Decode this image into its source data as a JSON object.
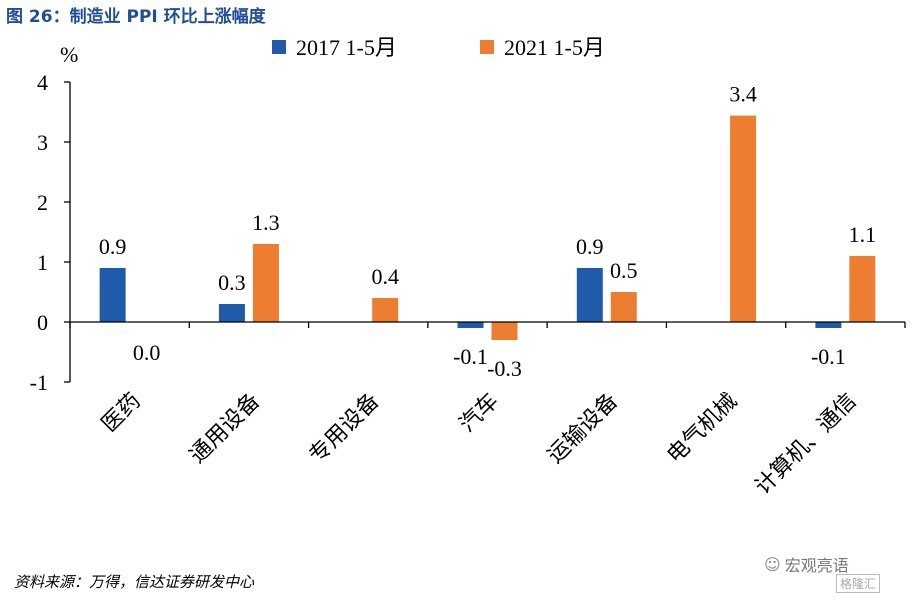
{
  "figure": {
    "title": "图  26：制造业 PPI 环比上涨幅度",
    "source": "资料来源：万得，信达证券研发中心",
    "watermark_text": "宏观亮语",
    "watermark_icon": "wechat-icon",
    "brand_text": "格隆汇"
  },
  "chart_data": {
    "type": "bar",
    "ylabel": "%",
    "ylim": [
      -1,
      4
    ],
    "yticks": [
      -1,
      0,
      1,
      2,
      3,
      4
    ],
    "grid": false,
    "legend_position": "top",
    "categories": [
      "医药",
      "通用设备",
      "专用设备",
      "汽车",
      "运输设备",
      "电气机械",
      "计算机、通信"
    ],
    "series": [
      {
        "name": "2017 1-5月",
        "color": "#1f5ba8",
        "values": [
          0.9,
          0.3,
          null,
          -0.1,
          0.9,
          null,
          -0.1
        ],
        "labels": [
          "0.9",
          "0.3",
          "",
          "-0.1",
          "0.9",
          "",
          "-0.1"
        ]
      },
      {
        "name": "2021 1-5月",
        "color": "#ed7d31",
        "values": [
          0.0,
          1.3,
          0.4,
          -0.3,
          0.5,
          3.44,
          1.1
        ],
        "labels": [
          "0.0",
          "1.3",
          "0.4",
          "-0.3",
          "0.5",
          "3.4",
          "1.1"
        ]
      }
    ]
  }
}
